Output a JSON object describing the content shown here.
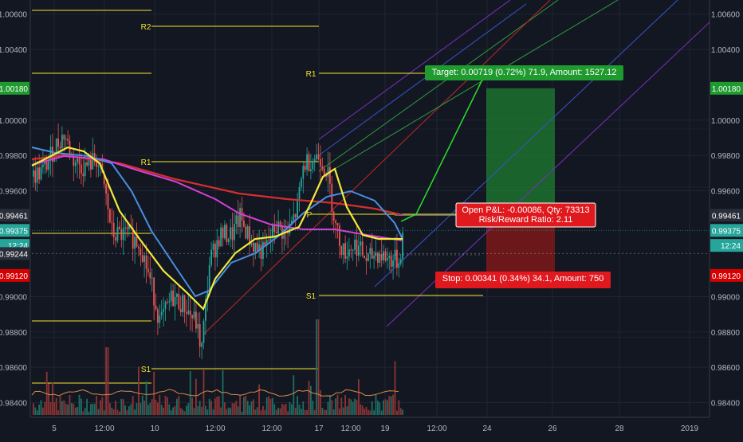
{
  "chart_data": {
    "type": "candlestick",
    "symbol_quote": "forex pair",
    "price_axis": {
      "ylim": [
        0.9833,
        1.0068
      ],
      "tick_labels": [
        "1.00600",
        "1.00400",
        "1.00000",
        "0.99800",
        "0.99600",
        "0.99000",
        "0.98800",
        "0.98600",
        "0.98400"
      ],
      "tick_values": [
        1.006,
        1.004,
        1.0,
        0.998,
        0.996,
        0.99,
        0.988,
        0.986,
        0.984
      ]
    },
    "time_axis": {
      "tick_labels": [
        "5",
        "12:00",
        "10",
        "12:00",
        "12:00",
        "17",
        "12:00",
        "19",
        "12:00",
        "24",
        "26",
        "28",
        "2019"
      ]
    },
    "price_tags": [
      {
        "label": "1.00180",
        "value": 1.0018,
        "color": "#1e9a2e",
        "side": "both"
      },
      {
        "label": "0.99461",
        "value": 0.99461,
        "color": "#2a2e39",
        "side": "both"
      },
      {
        "label": "0.99375",
        "value": 0.99375,
        "color": "#26a69a",
        "side": "both"
      },
      {
        "label": "12:24",
        "value": 0.9929,
        "color": "#26a69a",
        "side": "both"
      },
      {
        "label": "0.99244",
        "value": 0.99244,
        "color": "#2a2e39",
        "side": "left"
      },
      {
        "label": "0.99120",
        "value": 0.9912,
        "color": "#d50000",
        "side": "both"
      }
    ],
    "pivot_lines": [
      {
        "label": "R2",
        "value": 1.0051,
        "x_from": "week1",
        "x_to": "week1_end"
      },
      {
        "label": "R1",
        "value": 0.9972,
        "x_from": "week1",
        "x_to": "week1_end"
      },
      {
        "label": "S1",
        "value": 0.9855,
        "x_from": "week1",
        "x_to": "week1_end"
      },
      {
        "label": "P",
        "value": 0.9942,
        "x_from": "week2",
        "x_to": "week2_end"
      },
      {
        "label": "R1",
        "value": 1.0018,
        "x_from": "week2",
        "x_to": "week2_end"
      },
      {
        "label": "S1",
        "value": 0.9897,
        "x_from": "week2",
        "x_to": "week2_end"
      }
    ],
    "indicators": [
      "SMA yellow",
      "EMA blue",
      "MA magenta",
      "MA red (200)",
      "volume histogram",
      "volume MA"
    ],
    "position_tool": {
      "target_label": "Target: 0.00719 (0.72%) 71.9, Amount: 1527.12",
      "open_label": "Open P&L: -0.00086, Qty: 73313",
      "ratio_label": "Risk/Reward Ratio: 2.11",
      "stop_label": "Stop: 0.00341 (0.34%) 34.1, Amount: 750",
      "entry": 0.99461,
      "target": 1.0018,
      "stop": 0.9912
    },
    "grid": true,
    "legend": "none",
    "colors": {
      "up": "#26a69a",
      "down": "#ef5350",
      "target_zone": "#1e7d32",
      "stop_zone": "#8b1a1a",
      "pivot": "#f5e52a"
    }
  }
}
